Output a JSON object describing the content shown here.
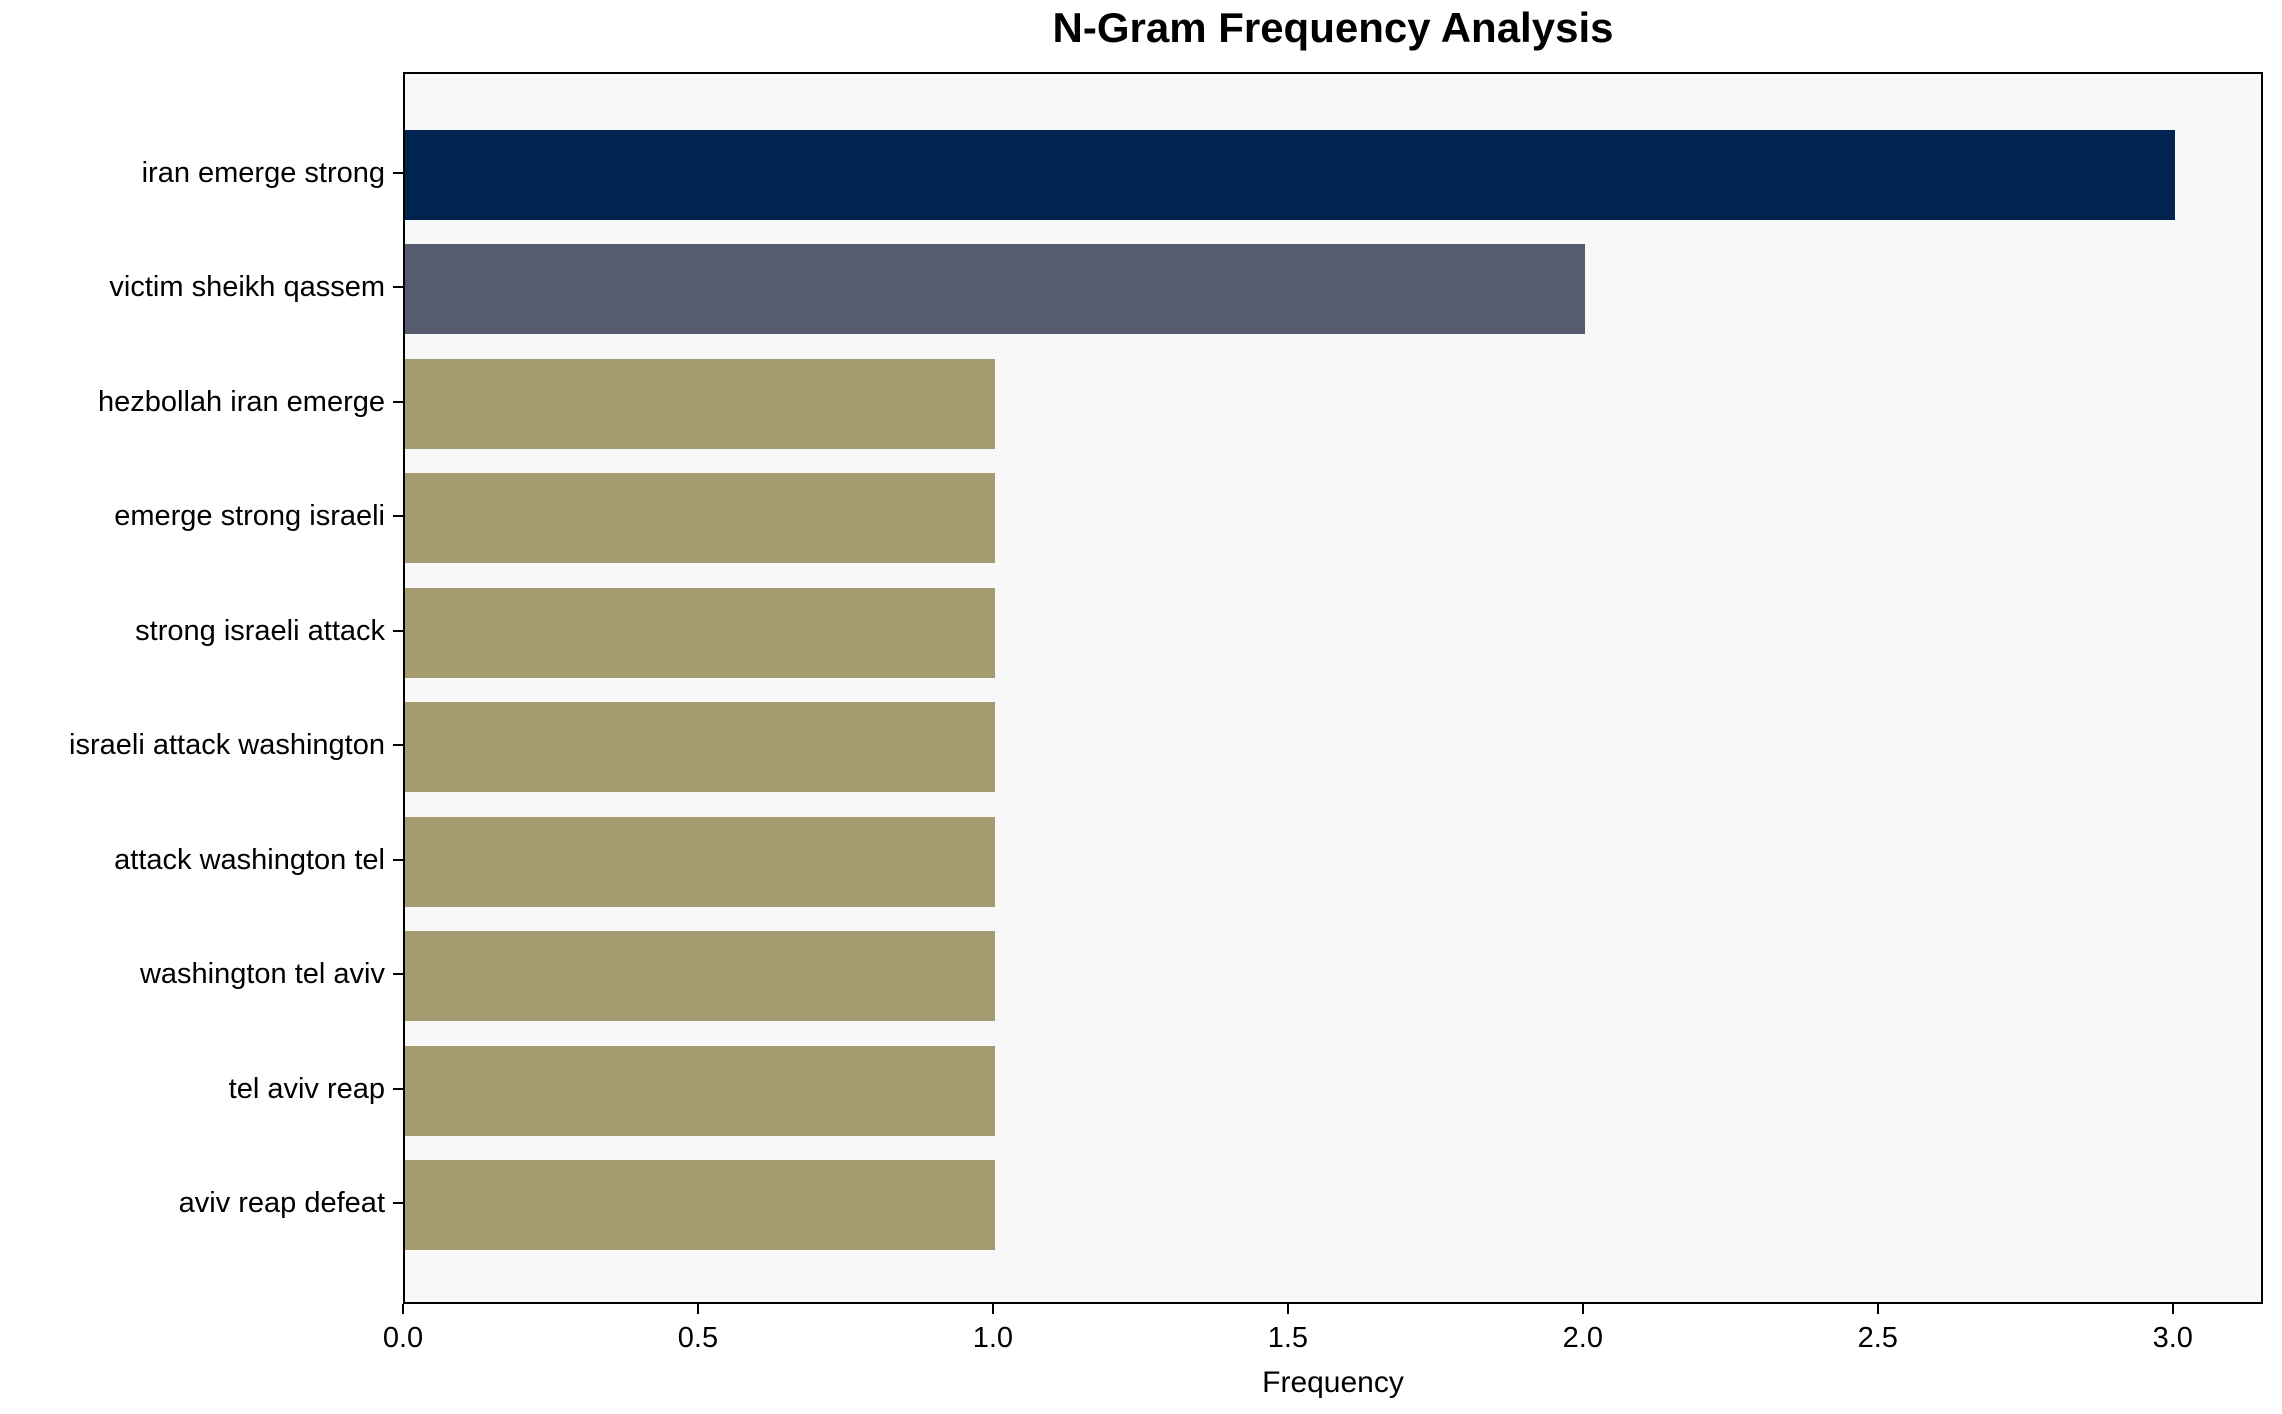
{
  "chart_data": {
    "type": "bar",
    "orientation": "horizontal",
    "title": "N-Gram Frequency Analysis",
    "xlabel": "Frequency",
    "ylabel": "",
    "categories": [
      "iran emerge strong",
      "victim sheikh qassem",
      "hezbollah iran emerge",
      "emerge strong israeli",
      "strong israeli attack",
      "israeli attack washington",
      "attack washington tel",
      "washington tel aviv",
      "tel aviv reap",
      "aviv reap defeat"
    ],
    "values": [
      3,
      2,
      1,
      1,
      1,
      1,
      1,
      1,
      1,
      1
    ],
    "bar_colors": [
      "#002350",
      "#565c6e",
      "#a49c70",
      "#a49c70",
      "#a49c70",
      "#a49c70",
      "#a49c70",
      "#a49c70",
      "#a49c70",
      "#a49c70"
    ],
    "x_ticks": [
      "0.0",
      "0.5",
      "1.0",
      "1.5",
      "2.0",
      "2.5",
      "3.0"
    ],
    "x_tick_values": [
      0,
      0.5,
      1,
      1.5,
      2,
      2.5,
      3
    ],
    "xlim": [
      0,
      3.153
    ],
    "grid": false,
    "legend": "none",
    "colors": {
      "plot_background": "#f8f8f9",
      "figure_background": "#ffffff",
      "spine": "#000000",
      "text": "#000000"
    }
  }
}
